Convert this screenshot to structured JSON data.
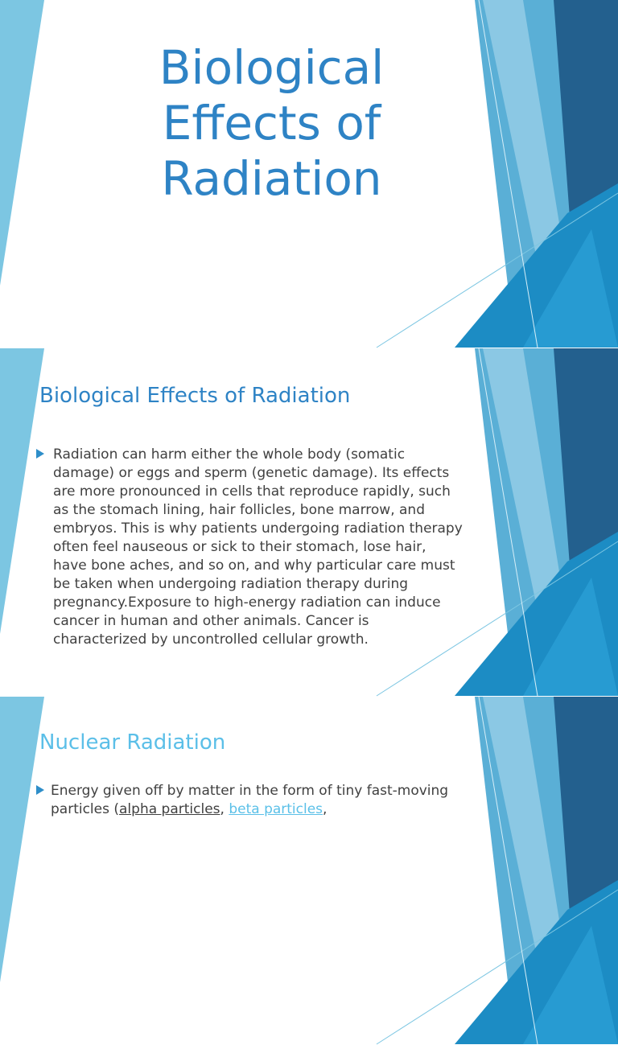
{
  "slides": [
    {
      "title": "Biological Effects of Radiation"
    },
    {
      "heading": "Biological Effects of Radiation",
      "body": "Radiation can harm either the whole body (somatic damage) or eggs and sperm (genetic damage). Its effects are more pronounced in cells that reproduce rapidly, such as the stomach lining, hair follicles, bone marrow, and embryos. This is why patients undergoing radiation therapy often feel nauseous or sick to their stomach, lose hair, have bone aches, and so on, and why particular care must be taken when undergoing radiation therapy during pregnancy.Exposure to high-energy radiation can induce cancer in human and other animals. Cancer is characterized by uncontrolled cellular growth."
    },
    {
      "heading": "Nuclear Radiation",
      "body": [
        "Energy given off by matter in the form of tiny fast-moving particles (",
        "alpha particles",
        ", ",
        "beta particles",
        ","
      ]
    }
  ]
}
